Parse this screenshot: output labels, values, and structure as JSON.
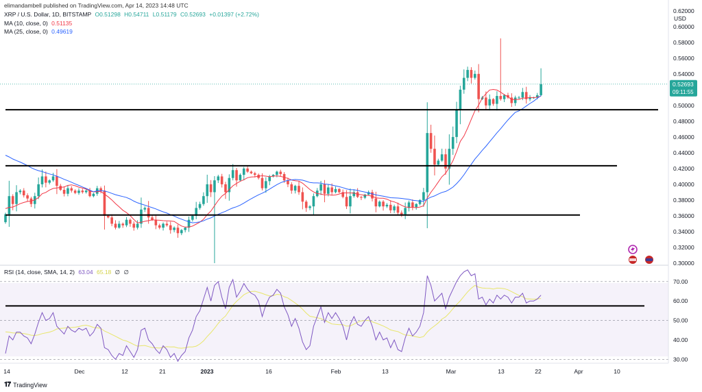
{
  "publisher": "elimandambell published on TradingView.com, Apr 14, 2023 14:48 UTC",
  "symbol": {
    "name": "XRP / U.S. Dollar, 1D, BITSTAMP",
    "o": "O0.51298",
    "h": "H0.54711",
    "l": "L0.51179",
    "c": "C0.52693",
    "change": "+0.01397 (+2.72%)"
  },
  "ma10": {
    "label": "MA (10, close, 0)",
    "value": "0.51135",
    "color": "#f23645"
  },
  "ma25": {
    "label": "MA (25, close, 0)",
    "value": "0.49619",
    "color": "#2962ff"
  },
  "rsi": {
    "label": "RSI (14, close, SMA, 14, 2)",
    "value": "63.04",
    "sma": "65.18",
    "extra1": "∅",
    "extra2": "∅",
    "color": "#7e57c2",
    "sma_color": "#e8e66a"
  },
  "price_badge": {
    "value": "0.52693",
    "countdown": "09:11:55",
    "color": "#26a69a"
  },
  "brand": {
    "name": "TradingView"
  },
  "colors": {
    "up": "#26a69a",
    "down": "#ef5350",
    "support": "#000000"
  },
  "chart_data": {
    "type": "candlestick",
    "currency_label": "USD",
    "y_ticks": [
      "0.62000",
      "0.60000",
      "0.58000",
      "0.56000",
      "0.54000",
      "0.52000",
      "0.50000",
      "0.48000",
      "0.46000",
      "0.44000",
      "0.42000",
      "0.40000",
      "0.38000",
      "0.36000",
      "0.34000",
      "0.32000",
      "0.30000"
    ],
    "ylim": [
      0.3,
      0.625
    ],
    "rsi_ticks": [
      "70.00",
      "60.00",
      "50.00",
      "40.00",
      "30.00"
    ],
    "rsi_lim": [
      28,
      77
    ],
    "x_ticks": [
      "14",
      "Dec",
      "12",
      "21",
      "2023",
      "16",
      "Feb",
      "13",
      "Mar",
      "13",
      "22",
      "Apr",
      "10"
    ],
    "close": [
      0.362,
      0.385,
      0.375,
      0.39,
      0.392,
      0.386,
      0.382,
      0.375,
      0.385,
      0.4,
      0.41,
      0.402,
      0.405,
      0.41,
      0.398,
      0.393,
      0.388,
      0.395,
      0.392,
      0.389,
      0.392,
      0.39,
      0.392,
      0.385,
      0.388,
      0.395,
      0.392,
      0.36,
      0.358,
      0.35,
      0.345,
      0.35,
      0.348,
      0.355,
      0.35,
      0.345,
      0.35,
      0.368,
      0.37,
      0.358,
      0.355,
      0.348,
      0.345,
      0.35,
      0.348,
      0.342,
      0.345,
      0.338,
      0.342,
      0.345,
      0.355,
      0.36,
      0.37,
      0.375,
      0.385,
      0.4,
      0.39,
      0.405,
      0.41,
      0.4,
      0.39,
      0.408,
      0.418,
      0.405,
      0.412,
      0.42,
      0.416,
      0.414,
      0.412,
      0.408,
      0.395,
      0.404,
      0.41,
      0.412,
      0.416,
      0.413,
      0.405,
      0.4,
      0.392,
      0.398,
      0.39,
      0.378,
      0.37,
      0.372,
      0.385,
      0.392,
      0.4,
      0.388,
      0.396,
      0.39,
      0.394,
      0.39,
      0.384,
      0.372,
      0.385,
      0.39,
      0.384,
      0.383,
      0.387,
      0.39,
      0.382,
      0.372,
      0.378,
      0.372,
      0.374,
      0.367,
      0.372,
      0.364,
      0.362,
      0.37,
      0.377,
      0.371,
      0.375,
      0.38,
      0.39,
      0.465,
      0.445,
      0.425,
      0.43,
      0.438,
      0.42,
      0.445,
      0.46,
      0.495,
      0.52,
      0.535,
      0.545,
      0.535,
      0.54,
      0.508,
      0.51,
      0.5,
      0.508,
      0.502,
      0.512,
      0.508,
      0.513,
      0.51,
      0.503,
      0.51,
      0.51,
      0.517,
      0.508,
      0.51,
      0.51,
      0.513,
      0.527
    ],
    "ma10_start": 0.37,
    "ma25_start": 0.44,
    "rsi_values": [
      33,
      42,
      40,
      44,
      44,
      42,
      41,
      38,
      43,
      49,
      54,
      50,
      51,
      54,
      47,
      45,
      43,
      47,
      45,
      44,
      46,
      45,
      46,
      42,
      44,
      48,
      46,
      36,
      35,
      32,
      30,
      33,
      32,
      37,
      34,
      31,
      35,
      45,
      46,
      40,
      38,
      35,
      33,
      37,
      35,
      31,
      33,
      29,
      32,
      34,
      41,
      45,
      52,
      55,
      61,
      67,
      60,
      68,
      70,
      62,
      56,
      67,
      71,
      62,
      65,
      69,
      66,
      64,
      63,
      60,
      52,
      58,
      62,
      63,
      66,
      64,
      57,
      53,
      47,
      51,
      46,
      39,
      35,
      37,
      47,
      52,
      57,
      49,
      54,
      51,
      54,
      51,
      47,
      40,
      48,
      52,
      48,
      47,
      50,
      52,
      47,
      40,
      44,
      40,
      41,
      36,
      40,
      35,
      34,
      41,
      46,
      42,
      44,
      47,
      54,
      73,
      68,
      60,
      62,
      64,
      56,
      62,
      66,
      70,
      73,
      75,
      76,
      73,
      74,
      61,
      62,
      58,
      61,
      59,
      63,
      61,
      63,
      62,
      59,
      62,
      62,
      64,
      59,
      60,
      60,
      61,
      63
    ],
    "support_lines": [
      {
        "price": 0.4945
      },
      {
        "price": 0.4235
      },
      {
        "price": 0.361
      }
    ],
    "rsi_support": 57.5
  }
}
